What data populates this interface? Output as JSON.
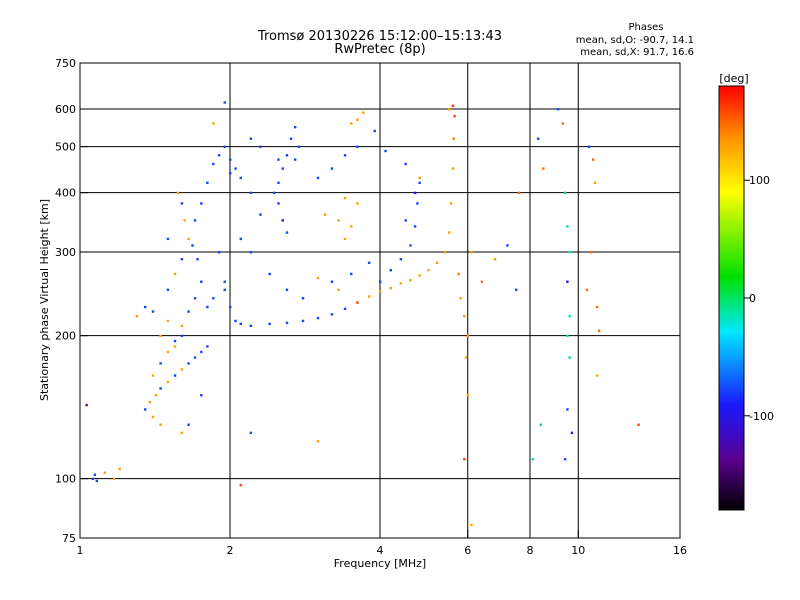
{
  "chart_data": {
    "type": "scatter",
    "title": "Tromsø 20130226 15:12:00–15:13:43",
    "subtitle": "RwPretec (8p)",
    "xlabel": "Frequency [MHz]",
    "ylabel": "Stationary phase Virtual Height [km]",
    "x_scale": "log",
    "y_scale": "log",
    "xlim": [
      1,
      16
    ],
    "ylim": [
      75,
      750
    ],
    "x_ticks": [
      1,
      2,
      4,
      6,
      8,
      10,
      16
    ],
    "y_ticks": [
      75,
      100,
      200,
      300,
      400,
      500,
      600,
      750
    ],
    "x_grid": [
      2,
      4,
      6,
      8,
      10
    ],
    "y_grid": [
      100,
      200,
      300,
      400,
      500,
      600
    ],
    "grid": true,
    "legend": {
      "label": "Phases",
      "line1": "mean, sd,O: -90.7, 14.1",
      "line2": "mean, sd,X:  91.7, 16.6",
      "placement": "top-right"
    },
    "colorbar": {
      "label": "[deg]",
      "range": [
        -180,
        180
      ],
      "ticks": [
        100,
        0,
        -100
      ],
      "placement": "right",
      "colormap": "rainbow (black→purple→blue→cyan→green→yellow→orange→red)"
    },
    "series": [
      {
        "points": [
          [
            1.06,
            100,
            -100
          ],
          [
            1.07,
            102,
            -100
          ],
          [
            1.08,
            99,
            -100
          ],
          [
            1.12,
            103,
            100
          ],
          [
            1.2,
            105,
            100
          ],
          [
            1.17,
            100,
            100
          ],
          [
            1.03,
            143,
            -150
          ],
          [
            1.35,
            140,
            -100
          ],
          [
            1.38,
            145,
            100
          ],
          [
            1.42,
            150,
            100
          ],
          [
            1.45,
            155,
            -100
          ],
          [
            1.5,
            160,
            100
          ],
          [
            1.55,
            165,
            -100
          ],
          [
            1.6,
            170,
            100
          ],
          [
            1.65,
            175,
            -100
          ],
          [
            1.7,
            180,
            -100
          ],
          [
            1.75,
            185,
            -100
          ],
          [
            1.8,
            190,
            -100
          ],
          [
            1.4,
            165,
            100
          ],
          [
            1.45,
            175,
            -100
          ],
          [
            1.5,
            185,
            100
          ],
          [
            1.55,
            195,
            -100
          ],
          [
            1.6,
            210,
            100
          ],
          [
            1.65,
            225,
            -100
          ],
          [
            1.7,
            240,
            -100
          ],
          [
            1.75,
            260,
            -100
          ],
          [
            1.5,
            250,
            -100
          ],
          [
            1.55,
            270,
            100
          ],
          [
            1.6,
            290,
            -100
          ],
          [
            1.65,
            320,
            100
          ],
          [
            1.7,
            350,
            -100
          ],
          [
            1.75,
            380,
            -100
          ],
          [
            1.8,
            420,
            -100
          ],
          [
            1.85,
            460,
            -100
          ],
          [
            1.9,
            480,
            -100
          ],
          [
            1.95,
            500,
            -100
          ],
          [
            2.0,
            470,
            -100
          ],
          [
            2.05,
            450,
            -100
          ],
          [
            2.1,
            430,
            -100
          ],
          [
            1.57,
            400,
            100
          ],
          [
            1.6,
            380,
            -100
          ],
          [
            1.62,
            350,
            100
          ],
          [
            1.68,
            310,
            -100
          ],
          [
            1.72,
            290,
            -100
          ],
          [
            1.9,
            300,
            -100
          ],
          [
            1.95,
            250,
            -100
          ],
          [
            2.0,
            230,
            -100
          ],
          [
            2.05,
            215,
            -100
          ],
          [
            2.1,
            212,
            -100
          ],
          [
            2.2,
            210,
            -100
          ],
          [
            2.4,
            212,
            -100
          ],
          [
            2.6,
            213,
            -100
          ],
          [
            2.8,
            215,
            -100
          ],
          [
            3.0,
            218,
            -100
          ],
          [
            3.2,
            222,
            -100
          ],
          [
            3.4,
            228,
            -100
          ],
          [
            3.6,
            235,
            150
          ],
          [
            3.8,
            242,
            100
          ],
          [
            4.0,
            248,
            100
          ],
          [
            4.2,
            252,
            100
          ],
          [
            4.4,
            258,
            100
          ],
          [
            4.6,
            262,
            100
          ],
          [
            4.8,
            268,
            100
          ],
          [
            5.0,
            275,
            100
          ],
          [
            5.2,
            285,
            100
          ],
          [
            5.4,
            300,
            100
          ],
          [
            5.5,
            330,
            100
          ],
          [
            5.55,
            380,
            100
          ],
          [
            5.6,
            450,
            100
          ],
          [
            5.62,
            520,
            120
          ],
          [
            5.64,
            580,
            150
          ],
          [
            5.6,
            610,
            160
          ],
          [
            5.5,
            600,
            100
          ],
          [
            4.0,
            260,
            -100
          ],
          [
            4.2,
            275,
            -100
          ],
          [
            4.4,
            290,
            -100
          ],
          [
            4.6,
            310,
            -100
          ],
          [
            4.7,
            340,
            -100
          ],
          [
            4.75,
            380,
            -100
          ],
          [
            4.8,
            420,
            -100
          ],
          [
            4.7,
            400,
            -120
          ],
          [
            4.5,
            350,
            -100
          ],
          [
            3.2,
            260,
            -100
          ],
          [
            3.5,
            270,
            -100
          ],
          [
            3.8,
            285,
            -100
          ],
          [
            3.3,
            250,
            100
          ],
          [
            3.0,
            265,
            100
          ],
          [
            2.8,
            240,
            -100
          ],
          [
            2.6,
            250,
            -100
          ],
          [
            2.4,
            270,
            -100
          ],
          [
            2.2,
            300,
            -100
          ],
          [
            2.1,
            320,
            -100
          ],
          [
            2.5,
            380,
            -100
          ],
          [
            2.45,
            400,
            -100
          ],
          [
            2.5,
            420,
            -100
          ],
          [
            2.55,
            450,
            -100
          ],
          [
            2.6,
            480,
            -100
          ],
          [
            2.65,
            520,
            -100
          ],
          [
            2.7,
            550,
            -100
          ],
          [
            2.75,
            500,
            -100
          ],
          [
            2.55,
            350,
            -120
          ],
          [
            2.6,
            330,
            -100
          ],
          [
            2.5,
            470,
            -100
          ],
          [
            2.7,
            470,
            -100
          ],
          [
            3.0,
            430,
            -100
          ],
          [
            3.2,
            450,
            -100
          ],
          [
            3.4,
            480,
            -100
          ],
          [
            3.6,
            500,
            -100
          ],
          [
            3.5,
            560,
            100
          ],
          [
            3.6,
            570,
            100
          ],
          [
            3.7,
            590,
            100
          ],
          [
            3.9,
            540,
            -100
          ],
          [
            4.1,
            490,
            -100
          ],
          [
            4.5,
            460,
            -100
          ],
          [
            4.8,
            430,
            100
          ],
          [
            3.3,
            350,
            100
          ],
          [
            3.4,
            320,
            100
          ],
          [
            3.5,
            340,
            100
          ],
          [
            3.6,
            380,
            100
          ],
          [
            3.4,
            390,
            100
          ],
          [
            3.1,
            360,
            100
          ],
          [
            2.0,
            440,
            -100
          ],
          [
            2.2,
            400,
            -100
          ],
          [
            2.3,
            360,
            -100
          ],
          [
            1.85,
            560,
            100
          ],
          [
            1.95,
            620,
            -100
          ],
          [
            2.2,
            520,
            -100
          ],
          [
            2.3,
            500,
            -100
          ],
          [
            1.5,
            320,
            -100
          ],
          [
            1.3,
            220,
            100
          ],
          [
            1.4,
            225,
            -100
          ],
          [
            1.45,
            200,
            100
          ],
          [
            1.55,
            190,
            100
          ],
          [
            1.5,
            215,
            100
          ],
          [
            1.6,
            200,
            -100
          ],
          [
            1.35,
            230,
            -100
          ],
          [
            1.8,
            230,
            -100
          ],
          [
            1.85,
            240,
            -100
          ],
          [
            1.95,
            260,
            -100
          ],
          [
            5.75,
            270,
            120
          ],
          [
            5.8,
            240,
            100
          ],
          [
            5.9,
            220,
            100
          ],
          [
            6.1,
            300,
            100
          ],
          [
            6.4,
            260,
            130
          ],
          [
            6.8,
            290,
            100
          ],
          [
            7.2,
            310,
            -100
          ],
          [
            7.6,
            400,
            130
          ],
          [
            7.5,
            250,
            -100
          ],
          [
            8.3,
            520,
            -100
          ],
          [
            8.5,
            450,
            130
          ],
          [
            9.1,
            600,
            -100
          ],
          [
            9.3,
            560,
            130
          ],
          [
            9.4,
            400,
            -40
          ],
          [
            9.5,
            340,
            -40
          ],
          [
            9.6,
            300,
            -50
          ],
          [
            9.5,
            260,
            -120
          ],
          [
            9.6,
            220,
            -50
          ],
          [
            9.5,
            200,
            -50
          ],
          [
            9.6,
            180,
            -40
          ],
          [
            9.5,
            140,
            -100
          ],
          [
            9.7,
            125,
            -120
          ],
          [
            9.4,
            110,
            -100
          ],
          [
            10.5,
            500,
            -100
          ],
          [
            10.7,
            470,
            130
          ],
          [
            10.8,
            420,
            100
          ],
          [
            10.9,
            230,
            130
          ],
          [
            11,
            205,
            130
          ],
          [
            10.4,
            250,
            130
          ],
          [
            10.6,
            300,
            130
          ],
          [
            10.9,
            165,
            100
          ],
          [
            13.2,
            130,
            150
          ],
          [
            8.4,
            130,
            -40
          ],
          [
            8.1,
            110,
            -40
          ],
          [
            6.0,
            200,
            100
          ],
          [
            5.95,
            180,
            100
          ],
          [
            6.0,
            150,
            100
          ],
          [
            6.1,
            80,
            100
          ],
          [
            5.9,
            110,
            150
          ],
          [
            3.0,
            120,
            100
          ],
          [
            2.1,
            97,
            150
          ],
          [
            2.2,
            125,
            -100
          ],
          [
            1.6,
            125,
            100
          ],
          [
            1.65,
            130,
            -100
          ],
          [
            1.75,
            150,
            -100
          ],
          [
            1.4,
            135,
            100
          ],
          [
            1.45,
            130,
            100
          ]
        ]
      }
    ]
  }
}
